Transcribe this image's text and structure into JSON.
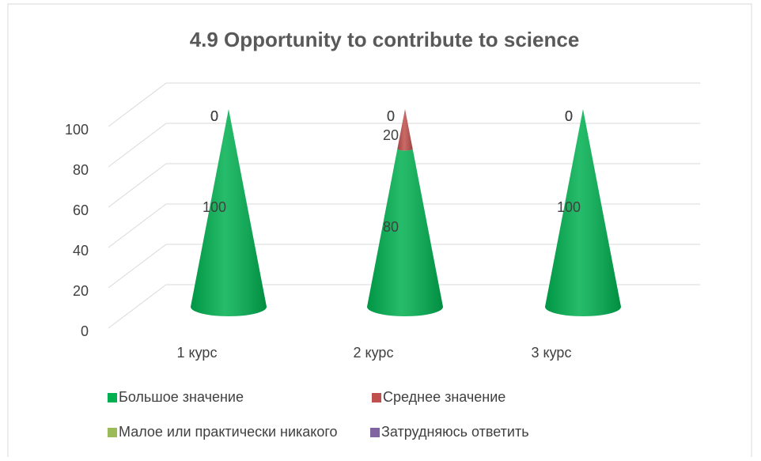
{
  "chart_data": {
    "type": "bar",
    "stacked": true,
    "shape": "cone",
    "title": "4.9 Opportunity to contribute to science",
    "categories": [
      "1 курс",
      "2 курс",
      "3 курс"
    ],
    "series": [
      {
        "name": "Большое значение",
        "color": "#00b050",
        "values": [
          100,
          80,
          100
        ]
      },
      {
        "name": "Среднее значение",
        "color": "#c0504d",
        "values": [
          0,
          20,
          0
        ]
      },
      {
        "name": "Малое или практически никакого",
        "color": "#9bbb59",
        "values": [
          0,
          0,
          0
        ]
      },
      {
        "name": "Затрудняюсь ответить",
        "color": "#8064a2",
        "values": [
          0,
          0,
          0
        ]
      }
    ],
    "ylim": [
      0,
      100
    ],
    "yticks": [
      0,
      20,
      40,
      60,
      80,
      100
    ],
    "grid": true,
    "legend": "bottom",
    "data_labels": true
  }
}
